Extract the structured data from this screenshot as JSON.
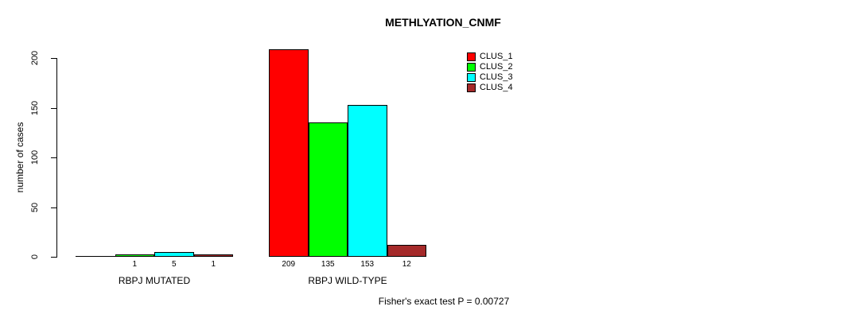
{
  "chart_data": {
    "type": "bar",
    "title": "METHLYATION_CNMF",
    "ylabel": "number of cases",
    "xlabel": "",
    "yticks": [
      0,
      50,
      100,
      150,
      200
    ],
    "ylim": [
      0,
      210
    ],
    "grid": false,
    "legend_position": "top-right",
    "categories": [
      "RBPJ MUTATED",
      "RBPJ WILD-TYPE"
    ],
    "series": [
      {
        "name": "CLUS_1",
        "color": "#FF0000",
        "values": [
          0,
          209
        ]
      },
      {
        "name": "CLUS_2",
        "color": "#00FF00",
        "values": [
          1,
          135
        ]
      },
      {
        "name": "CLUS_3",
        "color": "#00FFFF",
        "values": [
          5,
          153
        ]
      },
      {
        "name": "CLUS_4",
        "color": "#A52A2A",
        "values": [
          1,
          12
        ]
      }
    ],
    "bar_value_labels": {
      "RBPJ MUTATED": [
        "",
        "1",
        "5",
        "1"
      ],
      "RBPJ WILD-TYPE": [
        "209",
        "135",
        "153",
        "12"
      ]
    },
    "annotation": "Fisher's exact test P = 0.00727"
  },
  "colors": {
    "axis": "#000000",
    "text": "#000000",
    "background": "#ffffff"
  }
}
